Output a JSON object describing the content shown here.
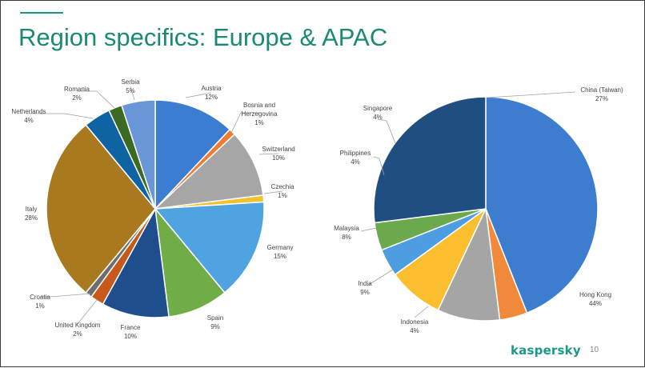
{
  "slide": {
    "title": "Region specifics: Europe & APAC",
    "brand": "kaspersky",
    "page_number": "10",
    "accent_color": "#1a9a86"
  },
  "chart_data": [
    {
      "type": "pie",
      "title": "",
      "slices": [
        {
          "label": [
            "Austria"
          ],
          "pct_label": "12%",
          "value": 12,
          "color": "#3b7dd0"
        },
        {
          "label": [
            "Bosnia and",
            "Herzegovina"
          ],
          "pct_label": "1%",
          "value": 1,
          "color": "#ee7d33"
        },
        {
          "label": [
            "Switzerland"
          ],
          "pct_label": "10%",
          "value": 10,
          "color": "#a6a6a6"
        },
        {
          "label": [
            "Czechia"
          ],
          "pct_label": "1%",
          "value": 1,
          "color": "#f2c12e"
        },
        {
          "label": [
            "Germany"
          ],
          "pct_label": "15%",
          "value": 15,
          "color": "#4fa3e0"
        },
        {
          "label": [
            "Spain"
          ],
          "pct_label": "9%",
          "value": 9,
          "color": "#71ad47"
        },
        {
          "label": [
            "France"
          ],
          "pct_label": "10%",
          "value": 10,
          "color": "#1f4e8c"
        },
        {
          "label": [
            "United Kingdom"
          ],
          "pct_label": "2%",
          "value": 2,
          "color": "#c55a1a"
        },
        {
          "label": [
            "Croatia"
          ],
          "pct_label": "1%",
          "value": 1,
          "color": "#6e6e6e"
        },
        {
          "label": [
            "Italy"
          ],
          "pct_label": "28%",
          "value": 28,
          "color": "#a8791f"
        },
        {
          "label": [
            "Netherlands"
          ],
          "pct_label": "4%",
          "value": 4,
          "color": "#0e63a3"
        },
        {
          "label": [
            "Romania"
          ],
          "pct_label": "2%",
          "value": 2,
          "color": "#3b6a24"
        },
        {
          "label": [
            "Serbia"
          ],
          "pct_label": "5%",
          "value": 5,
          "color": "#6896d6"
        }
      ]
    },
    {
      "type": "pie",
      "title": "",
      "slices": [
        {
          "label": [
            "Hong Kong"
          ],
          "pct_label": "44%",
          "value": 44,
          "color": "#3d7dd0"
        },
        {
          "label": [
            "Indonesia"
          ],
          "pct_label": "4%",
          "value": 4,
          "color": "#f08a3a"
        },
        {
          "label": [
            "India"
          ],
          "pct_label": "9%",
          "value": 9,
          "color": "#a5a5a5"
        },
        {
          "label": [
            "Malaysia"
          ],
          "pct_label": "8%",
          "value": 8,
          "color": "#fbbe2e"
        },
        {
          "label": [
            "Philippines"
          ],
          "pct_label": "4%",
          "value": 4,
          "color": "#4d9ee0"
        },
        {
          "label": [
            "Singapore"
          ],
          "pct_label": "4%",
          "value": 4,
          "color": "#6aaa4c"
        },
        {
          "label": [
            "China (Taiwan)"
          ],
          "pct_label": "27%",
          "value": 27,
          "color": "#1f4e80"
        }
      ]
    }
  ]
}
